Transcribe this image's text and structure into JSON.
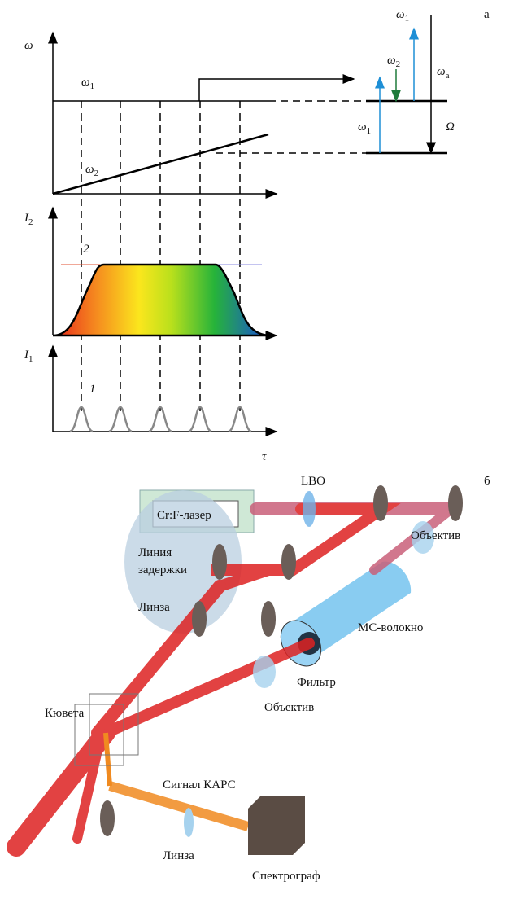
{
  "panel_a": {
    "label": "а",
    "labels": [
      {
        "text": "ω"
      },
      {
        "text": "ω",
        "sub": "1"
      },
      {
        "text": "ω",
        "sub": "2"
      },
      {
        "text": "I",
        "sub": "2"
      },
      {
        "text": "2"
      },
      {
        "text": "I",
        "sub": "1"
      },
      {
        "text": "1"
      },
      {
        "text": "τ"
      },
      {
        "text": "ω",
        "sub": "1"
      },
      {
        "text": "ω",
        "sub": "2"
      },
      {
        "text": "ω",
        "sub": "a"
      },
      {
        "text": "ω",
        "sub": "1"
      },
      {
        "text": "Ω"
      }
    ]
  },
  "panel_b": {
    "label": "б",
    "labels": [
      "LBO",
      "Cr:F-лазер",
      "Линия",
      "задержки",
      "Объектив",
      "МС-волокно",
      "Линза",
      "Фильтр",
      "Объектив",
      "Кювета",
      "Сигнал КАРС",
      "Линза",
      "Спектрограф"
    ]
  }
}
